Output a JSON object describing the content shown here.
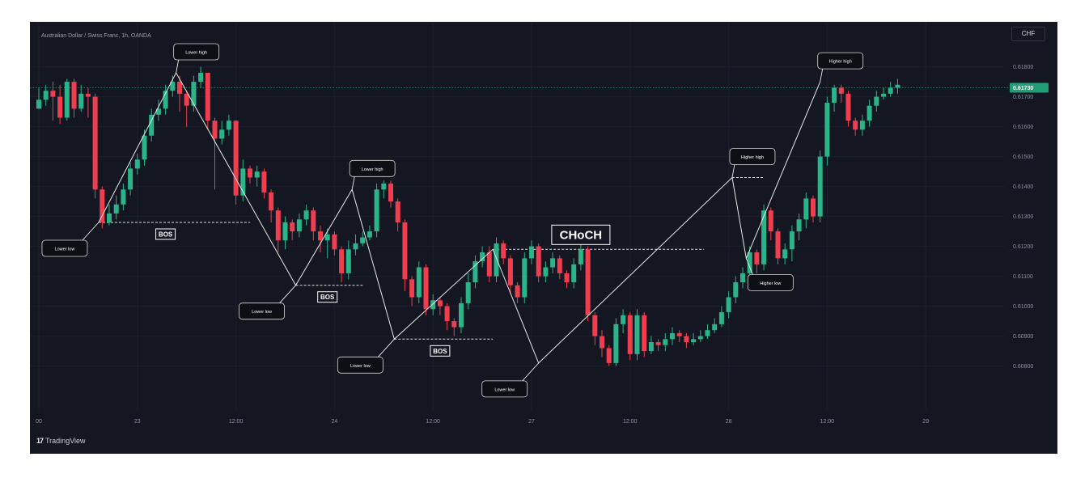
{
  "header": {
    "title": "Australian Dollar / Swiss Franc, 1h, OANDA",
    "currency_button": "CHF"
  },
  "footer": {
    "brand_logo": "17",
    "brand_name": "TradingView"
  },
  "colors": {
    "background": "#141722",
    "bull": "#2bb38a",
    "bear": "#ef3e4f",
    "grid": "#1c202b",
    "price_label": "#1f9e78",
    "line": "#e8e8e8"
  },
  "chart_data": {
    "type": "candlestick",
    "title": "Australian Dollar / Swiss Franc, 1h, OANDA",
    "y_axis": {
      "ticks": [
        0.618,
        0.617,
        0.616,
        0.615,
        0.614,
        0.613,
        0.612,
        0.611,
        0.61,
        0.609,
        0.608
      ],
      "tick_labels": [
        "0.61800",
        "0.61700",
        "0.61600",
        "0.61500",
        "0.61400",
        "0.61300",
        "0.61200",
        "0.61100",
        "0.61000",
        "0.60900",
        "0.60800"
      ],
      "range": [
        0.6068,
        0.6188
      ]
    },
    "x_axis": {
      "labels": [
        {
          "text": "00",
          "bar": 0
        },
        {
          "text": "23",
          "bar": 14
        },
        {
          "text": "12:00",
          "bar": 28
        },
        {
          "text": "24",
          "bar": 42
        },
        {
          "text": "12:00",
          "bar": 56
        },
        {
          "text": "27",
          "bar": 70
        },
        {
          "text": "12:00",
          "bar": 84
        },
        {
          "text": "28",
          "bar": 98
        },
        {
          "text": "12:00",
          "bar": 112
        },
        {
          "text": "29",
          "bar": 126
        }
      ]
    },
    "current_price": {
      "value": 0.6173,
      "label": "0.61730"
    },
    "closes": [
      0.6169,
      0.6172,
      0.617,
      0.6163,
      0.6175,
      0.6166,
      0.6171,
      0.617,
      0.6139,
      0.6128,
      0.6131,
      0.6134,
      0.6139,
      0.6146,
      0.6149,
      0.6157,
      0.6164,
      0.6166,
      0.6172,
      0.6175,
      0.6171,
      0.6167,
      0.6175,
      0.6178,
      0.6162,
      0.6156,
      0.6159,
      0.6162,
      0.6137,
      0.6146,
      0.6143,
      0.6145,
      0.6138,
      0.6132,
      0.6122,
      0.6128,
      0.6125,
      0.6129,
      0.6132,
      0.6125,
      0.6122,
      0.6124,
      0.6119,
      0.6111,
      0.6119,
      0.6121,
      0.6123,
      0.6125,
      0.6139,
      0.6141,
      0.6135,
      0.6128,
      0.6109,
      0.6103,
      0.6113,
      0.6099,
      0.6102,
      0.61,
      0.6095,
      0.6093,
      0.6101,
      0.6108,
      0.6115,
      0.6118,
      0.611,
      0.6121,
      0.6116,
      0.6107,
      0.6103,
      0.6116,
      0.612,
      0.611,
      0.6113,
      0.6116,
      0.6111,
      0.6108,
      0.6114,
      0.6119,
      0.6097,
      0.609,
      0.6086,
      0.6081,
      0.6094,
      0.6097,
      0.6084,
      0.6097,
      0.6085,
      0.6088,
      0.6087,
      0.6089,
      0.6091,
      0.609,
      0.6088,
      0.6089,
      0.609,
      0.6092,
      0.6094,
      0.6098,
      0.6103,
      0.6108,
      0.6111,
      0.6118,
      0.6114,
      0.6132,
      0.6125,
      0.6116,
      0.6119,
      0.6125,
      0.6129,
      0.6136,
      0.613,
      0.615,
      0.6168,
      0.6173,
      0.6171,
      0.6162,
      0.6159,
      0.6162,
      0.6167,
      0.617,
      0.6171,
      0.6173,
      0.6174
    ],
    "highs": [
      0.6173,
      0.6174,
      0.6175,
      0.6174,
      0.6176,
      0.6176,
      0.6174,
      0.6173,
      0.6171,
      0.614,
      0.6134,
      0.6137,
      0.6141,
      0.6148,
      0.6151,
      0.6159,
      0.6166,
      0.6169,
      0.6174,
      0.6177,
      0.6177,
      0.6172,
      0.6177,
      0.618,
      0.6178,
      0.6163,
      0.6162,
      0.6164,
      0.6162,
      0.6149,
      0.6147,
      0.6147,
      0.6146,
      0.6139,
      0.6133,
      0.613,
      0.6129,
      0.6131,
      0.6134,
      0.6133,
      0.6127,
      0.6126,
      0.6125,
      0.612,
      0.6122,
      0.6124,
      0.6125,
      0.6127,
      0.6141,
      0.6142,
      0.6142,
      0.6136,
      0.6129,
      0.611,
      0.6115,
      0.6114,
      0.6104,
      0.6103,
      0.6101,
      0.6096,
      0.6103,
      0.6111,
      0.6117,
      0.612,
      0.612,
      0.6123,
      0.6122,
      0.6117,
      0.6108,
      0.6118,
      0.6122,
      0.6121,
      0.6115,
      0.6118,
      0.6117,
      0.6112,
      0.6116,
      0.6121,
      0.612,
      0.6098,
      0.6092,
      0.6087,
      0.6096,
      0.6099,
      0.6098,
      0.6099,
      0.6098,
      0.609,
      0.6089,
      0.6091,
      0.6093,
      0.6092,
      0.6091,
      0.6091,
      0.6092,
      0.6094,
      0.6096,
      0.61,
      0.6105,
      0.611,
      0.6113,
      0.612,
      0.6119,
      0.6134,
      0.6133,
      0.6126,
      0.6121,
      0.6127,
      0.6131,
      0.6138,
      0.6137,
      0.6152,
      0.617,
      0.6174,
      0.6174,
      0.6172,
      0.6163,
      0.6164,
      0.6169,
      0.6172,
      0.6173,
      0.6175,
      0.6176
    ],
    "lows": [
      0.6166,
      0.6167,
      0.6162,
      0.6161,
      0.6162,
      0.6163,
      0.6165,
      0.6163,
      0.6136,
      0.6126,
      0.6127,
      0.6129,
      0.6132,
      0.6137,
      0.6144,
      0.6147,
      0.6155,
      0.6162,
      0.6164,
      0.617,
      0.6165,
      0.616,
      0.6165,
      0.6173,
      0.6159,
      0.6139,
      0.6154,
      0.6157,
      0.6134,
      0.6135,
      0.6141,
      0.614,
      0.6136,
      0.6128,
      0.6118,
      0.6119,
      0.6122,
      0.6123,
      0.6127,
      0.6122,
      0.6118,
      0.6116,
      0.6117,
      0.6108,
      0.6109,
      0.6117,
      0.612,
      0.6122,
      0.6123,
      0.6136,
      0.6133,
      0.6125,
      0.6105,
      0.61,
      0.6101,
      0.6097,
      0.6097,
      0.6097,
      0.6092,
      0.609,
      0.6091,
      0.6099,
      0.6106,
      0.6113,
      0.6108,
      0.6108,
      0.6114,
      0.6104,
      0.6101,
      0.6101,
      0.6114,
      0.6108,
      0.6108,
      0.6111,
      0.6109,
      0.6106,
      0.6106,
      0.6112,
      0.6095,
      0.6087,
      0.6083,
      0.608,
      0.608,
      0.6091,
      0.6082,
      0.6082,
      0.6083,
      0.6084,
      0.6085,
      0.6085,
      0.6087,
      0.6088,
      0.6086,
      0.6087,
      0.6088,
      0.6089,
      0.6091,
      0.6093,
      0.6096,
      0.6101,
      0.6106,
      0.6108,
      0.6111,
      0.6112,
      0.6122,
      0.6114,
      0.6114,
      0.6115,
      0.6122,
      0.6126,
      0.6128,
      0.6128,
      0.6147,
      0.6165,
      0.6168,
      0.616,
      0.6157,
      0.6157,
      0.616,
      0.6165,
      0.6169,
      0.617,
      0.6171
    ],
    "structure_line": [
      {
        "bar": 8.5,
        "price": 0.6128
      },
      {
        "bar": 19.5,
        "price": 0.6178
      },
      {
        "bar": 36.5,
        "price": 0.6107
      },
      {
        "bar": 44.5,
        "price": 0.6139
      },
      {
        "bar": 50.5,
        "price": 0.6089
      },
      {
        "bar": 64.5,
        "price": 0.6119
      },
      {
        "bar": 71,
        "price": 0.6081
      },
      {
        "bar": 98.5,
        "price": 0.6143
      },
      {
        "bar": 100.5,
        "price": 0.6116
      },
      {
        "bar": 111,
        "price": 0.6175
      }
    ],
    "levels": [
      {
        "from_bar": 8.5,
        "to_bar": 30,
        "price": 0.6128
      },
      {
        "from_bar": 36.5,
        "to_bar": 46,
        "price": 0.6107
      },
      {
        "from_bar": 50.5,
        "to_bar": 64.5,
        "price": 0.6089
      },
      {
        "from_bar": 64.5,
        "to_bar": 94.5,
        "price": 0.6119
      },
      {
        "from_bar": 98.5,
        "to_bar": 103,
        "price": 0.6143
      }
    ],
    "annotations": [
      {
        "text": "Lower high",
        "bar": 19.5,
        "price": 0.6178,
        "pos": "above"
      },
      {
        "text": "Lower low",
        "bar": 8.5,
        "price": 0.6128,
        "pos": "below-left"
      },
      {
        "text": "Lower high",
        "bar": 44.5,
        "price": 0.6139,
        "pos": "above"
      },
      {
        "text": "Lower low",
        "bar": 36.5,
        "price": 0.6107,
        "pos": "below-left"
      },
      {
        "text": "Lower low",
        "bar": 50.5,
        "price": 0.6089,
        "pos": "below-left"
      },
      {
        "text": "Lower low",
        "bar": 71,
        "price": 0.6081,
        "pos": "below-left"
      },
      {
        "text": "Higher high",
        "bar": 98.5,
        "price": 0.6143,
        "pos": "above"
      },
      {
        "text": "Higher low",
        "bar": 100.5,
        "price": 0.6116,
        "pos": "below-right"
      },
      {
        "text": "Higher high",
        "bar": 111,
        "price": 0.6175,
        "pos": "above"
      }
    ],
    "markers": [
      {
        "text": "BOS",
        "bar": 18,
        "price": 0.6128,
        "kind": "bos"
      },
      {
        "text": "BOS",
        "bar": 41,
        "price": 0.6107,
        "kind": "bos"
      },
      {
        "text": "BOS",
        "bar": 57,
        "price": 0.6089,
        "kind": "bos"
      },
      {
        "text": "CHoCH",
        "bar": 77,
        "price": 0.6119,
        "kind": "choch"
      }
    ]
  }
}
